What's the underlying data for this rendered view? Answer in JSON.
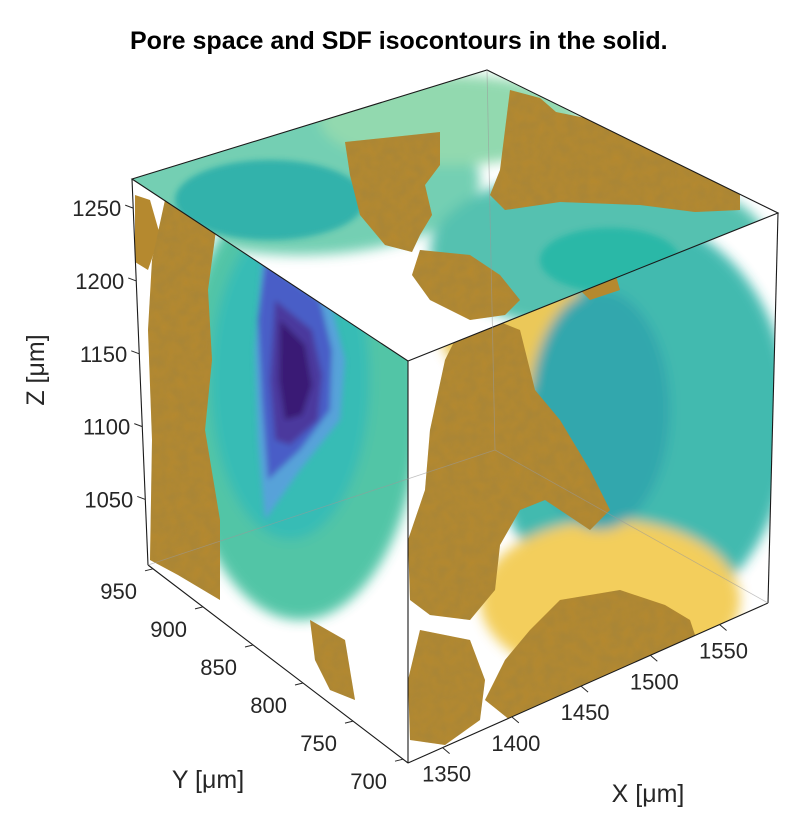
{
  "chart_data": {
    "type": "volume",
    "title": "Pore space and SDF isocontours in the solid.",
    "xlabel": "X [μm]",
    "ylabel": "Y [μm]",
    "zlabel": "Z [μm]",
    "xticks": [
      "1350",
      "1400",
      "1450",
      "1500",
      "1550"
    ],
    "yticks": [
      "700",
      "750",
      "800",
      "850",
      "900",
      "950"
    ],
    "zticks": [
      "1050",
      "1100",
      "1150",
      "1200",
      "1250"
    ],
    "xlim": [
      1325,
      1585
    ],
    "ylim": [
      695,
      955
    ],
    "zlim": [
      1005,
      1270
    ],
    "colors": {
      "pore_surface": "#b5892f",
      "isocontour_low": "#3b0f70",
      "isocontour_mid_low": "#4d5fd0",
      "isocontour_mid": "#22b9a8",
      "isocontour_mid_high": "#46c08a",
      "isocontour_high": "#f2c94c"
    }
  }
}
